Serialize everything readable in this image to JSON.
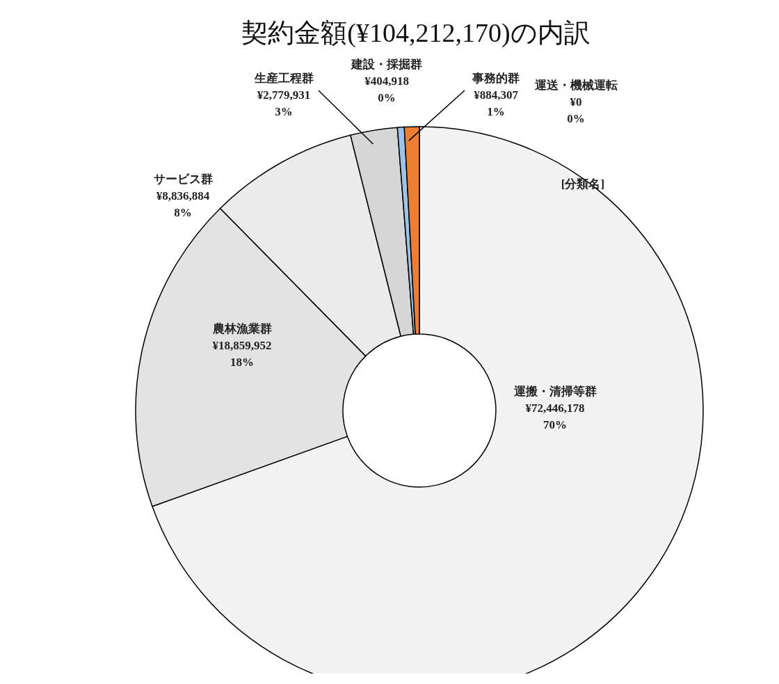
{
  "chart_data": {
    "type": "donut",
    "title": "契約金額(¥104,212,170)の内訳",
    "categories": [
      "運送・機械運転",
      "運搬・清掃等群",
      "農林漁業群",
      "サービス群",
      "生産工程群",
      "建設・採掘群",
      "事務的群"
    ],
    "values": [
      0,
      72446178,
      18859952,
      8836884,
      2779931,
      404918,
      884307
    ],
    "value_labels": [
      "¥0\n0%",
      "¥72,446,178\n70%",
      "¥18,859,952\n18%",
      "¥8,836,884\n8%",
      "¥2,779,931\n3%",
      "¥404,918\n0%",
      "¥884,307\n1%"
    ],
    "colors": [
      "#5b9bd5",
      "#f2f2f2",
      "#e3e3e3",
      "#ebebeb",
      "#d6d6d6",
      "#9dc3e6",
      "#ed7d31"
    ],
    "annotations": [
      "[分類名]"
    ]
  }
}
